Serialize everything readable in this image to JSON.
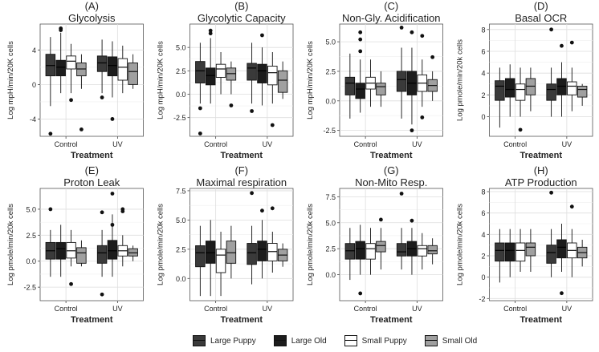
{
  "chart_data": [
    {
      "type": "boxplot",
      "title": "(A)\nGlycolysis",
      "xlabel": "Treatment",
      "ylabel": "Log mpH/min/20K cells",
      "categories": [
        "Control",
        "UV"
      ],
      "ylim": [
        -6,
        7
      ],
      "yticks": [
        -4,
        0,
        4
      ],
      "series": [
        {
          "name": "Large Puppy",
          "boxes": [
            {
              "whislo": -2.5,
              "q1": 1.0,
              "med": 2.2,
              "q3": 3.5,
              "whishi": 5.5,
              "fliers": [
                -5.7
              ]
            },
            {
              "whislo": -1.0,
              "q1": 1.5,
              "med": 2.5,
              "q3": 3.3,
              "whishi": 5.2,
              "fliers": [
                -1.5
              ]
            }
          ]
        },
        {
          "name": "Large Old",
          "boxes": [
            {
              "whislo": -1.0,
              "q1": 1.0,
              "med": 2.0,
              "q3": 2.8,
              "whishi": 6.0,
              "fliers": [
                6.5,
                6.3
              ]
            },
            {
              "whislo": -1.5,
              "q1": 1.0,
              "med": 2.2,
              "q3": 3.2,
              "whishi": 5.0,
              "fliers": [
                -4.0
              ]
            }
          ]
        },
        {
          "name": "Small Puppy",
          "boxes": [
            {
              "whislo": -1.0,
              "q1": 1.8,
              "med": 2.7,
              "q3": 3.3,
              "whishi": 4.7,
              "fliers": [
                -1.8
              ]
            },
            {
              "whislo": -1.0,
              "q1": 0.5,
              "med": 2.0,
              "q3": 3.0,
              "whishi": 4.5,
              "fliers": []
            }
          ]
        },
        {
          "name": "Small Old",
          "boxes": [
            {
              "whislo": -0.5,
              "q1": 1.0,
              "med": 1.8,
              "q3": 2.5,
              "whishi": 3.5,
              "fliers": [
                -5.2
              ]
            },
            {
              "whislo": -0.5,
              "q1": 0.0,
              "med": 1.5,
              "q3": 2.5,
              "whishi": 3.5,
              "fliers": []
            }
          ]
        }
      ]
    },
    {
      "type": "boxplot",
      "title": "(B)\nGlycolytic Capacity",
      "xlabel": "Treatment",
      "ylabel": "Log mpH/min/20K cells",
      "categories": [
        "Control",
        "UV"
      ],
      "ylim": [
        -4.5,
        7.5
      ],
      "yticks": [
        -2.5,
        0.0,
        2.5,
        5.0
      ],
      "series": [
        {
          "name": "Large Puppy",
          "boxes": [
            {
              "whislo": -1.0,
              "q1": 1.2,
              "med": 2.5,
              "q3": 3.5,
              "whishi": 5.5,
              "fliers": [
                -1.5,
                -4.2
              ]
            },
            {
              "whislo": -1.0,
              "q1": 1.5,
              "med": 2.8,
              "q3": 3.3,
              "whishi": 5.5,
              "fliers": [
                -1.8
              ]
            }
          ]
        },
        {
          "name": "Large Old",
          "boxes": [
            {
              "whislo": -1.0,
              "q1": 1.0,
              "med": 2.0,
              "q3": 2.8,
              "whishi": 6.0,
              "fliers": [
                6.8,
                6.5
              ]
            },
            {
              "whislo": -1.2,
              "q1": 1.2,
              "med": 2.5,
              "q3": 3.2,
              "whishi": 5.0,
              "fliers": [
                6.3
              ]
            }
          ]
        },
        {
          "name": "Small Puppy",
          "boxes": [
            {
              "whislo": 0.0,
              "q1": 1.8,
              "med": 2.7,
              "q3": 3.2,
              "whishi": 4.5,
              "fliers": []
            },
            {
              "whislo": -1.0,
              "q1": 1.0,
              "med": 2.3,
              "q3": 3.0,
              "whishi": 4.5,
              "fliers": [
                -3.3
              ]
            }
          ]
        },
        {
          "name": "Small Old",
          "boxes": [
            {
              "whislo": 0.0,
              "q1": 1.5,
              "med": 2.2,
              "q3": 2.8,
              "whishi": 3.5,
              "fliers": [
                -1.2
              ]
            },
            {
              "whislo": -0.5,
              "q1": 0.2,
              "med": 1.5,
              "q3": 2.5,
              "whishi": 3.5,
              "fliers": []
            }
          ]
        }
      ]
    },
    {
      "type": "boxplot",
      "title": "(C)\nNon-Gly. Acidification",
      "xlabel": "Treatment",
      "ylabel": "Log mpH/min/20K cells",
      "categories": [
        "Control",
        "UV"
      ],
      "ylim": [
        -3,
        6.5
      ],
      "yticks": [
        -2.5,
        0.0,
        2.5,
        5.0
      ],
      "series": [
        {
          "name": "Large Puppy",
          "boxes": [
            {
              "whislo": -1.5,
              "q1": 0.5,
              "med": 1.5,
              "q3": 2.0,
              "whishi": 4.0,
              "fliers": []
            },
            {
              "whislo": -1.5,
              "q1": 0.8,
              "med": 1.8,
              "q3": 2.5,
              "whishi": 4.5,
              "fliers": [
                6.2
              ]
            }
          ]
        },
        {
          "name": "Large Old",
          "boxes": [
            {
              "whislo": -1.0,
              "q1": 0.2,
              "med": 1.0,
              "q3": 1.5,
              "whishi": 3.5,
              "fliers": [
                5.8,
                5.2,
                4.2
              ]
            },
            {
              "whislo": -2.0,
              "q1": 0.5,
              "med": 1.5,
              "q3": 2.5,
              "whishi": 4.5,
              "fliers": [
                -2.5,
                5.8
              ]
            }
          ]
        },
        {
          "name": "Small Puppy",
          "boxes": [
            {
              "whislo": -0.5,
              "q1": 1.0,
              "med": 1.5,
              "q3": 2.0,
              "whishi": 3.5,
              "fliers": []
            },
            {
              "whislo": -0.5,
              "q1": 0.8,
              "med": 1.5,
              "q3": 2.2,
              "whishi": 3.5,
              "fliers": [
                5.5,
                -1.4
              ]
            }
          ]
        },
        {
          "name": "Small Old",
          "boxes": [
            {
              "whislo": -0.5,
              "q1": 0.5,
              "med": 1.2,
              "q3": 1.5,
              "whishi": 2.5,
              "fliers": []
            },
            {
              "whislo": 0.0,
              "q1": 0.8,
              "med": 1.3,
              "q3": 1.8,
              "whishi": 2.5,
              "fliers": [
                3.7
              ]
            }
          ]
        }
      ]
    },
    {
      "type": "boxplot",
      "title": "(D)\nBasal OCR",
      "xlabel": "Treatment",
      "ylabel": "Log pmole/min/20k cells",
      "categories": [
        "Control",
        "UV"
      ],
      "ylim": [
        -1.8,
        8.5
      ],
      "yticks": [
        0,
        2,
        4,
        6,
        8
      ],
      "series": [
        {
          "name": "Large Puppy",
          "boxes": [
            {
              "whislo": -1.0,
              "q1": 1.5,
              "med": 2.8,
              "q3": 3.3,
              "whishi": 4.5,
              "fliers": []
            },
            {
              "whislo": 0.0,
              "q1": 1.5,
              "med": 2.5,
              "q3": 3.0,
              "whishi": 4.5,
              "fliers": [
                8.0
              ]
            }
          ]
        },
        {
          "name": "Large Old",
          "boxes": [
            {
              "whislo": 0.0,
              "q1": 1.8,
              "med": 2.5,
              "q3": 3.5,
              "whishi": 4.8,
              "fliers": []
            },
            {
              "whislo": 0.0,
              "q1": 2.0,
              "med": 2.8,
              "q3": 3.5,
              "whishi": 5.0,
              "fliers": [
                6.5
              ]
            }
          ]
        },
        {
          "name": "Small Puppy",
          "boxes": [
            {
              "whislo": 0.0,
              "q1": 1.5,
              "med": 2.5,
              "q3": 3.0,
              "whishi": 4.5,
              "fliers": [
                -1.2
              ]
            },
            {
              "whislo": 0.5,
              "q1": 2.0,
              "med": 2.8,
              "q3": 3.2,
              "whishi": 4.5,
              "fliers": [
                6.8
              ]
            }
          ]
        },
        {
          "name": "Small Old",
          "boxes": [
            {
              "whislo": 0.5,
              "q1": 2.0,
              "med": 2.8,
              "q3": 3.5,
              "whishi": 4.5,
              "fliers": []
            },
            {
              "whislo": 1.0,
              "q1": 1.8,
              "med": 2.5,
              "q3": 2.8,
              "whishi": 3.0,
              "fliers": []
            }
          ]
        }
      ]
    },
    {
      "type": "boxplot",
      "title": "(E)\nProton Leak",
      "xlabel": "Treatment",
      "ylabel": "Log pmole/min/20k cells",
      "categories": [
        "Control",
        "UV"
      ],
      "ylim": [
        -3.8,
        7
      ],
      "yticks": [
        -2.5,
        0.0,
        2.5,
        5.0
      ],
      "series": [
        {
          "name": "Large Puppy",
          "boxes": [
            {
              "whislo": -1.5,
              "q1": 0.2,
              "med": 1.0,
              "q3": 1.8,
              "whishi": 3.0,
              "fliers": [
                5.0
              ]
            },
            {
              "whislo": -1.5,
              "q1": -0.2,
              "med": 0.8,
              "q3": 1.5,
              "whishi": 3.0,
              "fliers": [
                -3.2,
                4.7
              ]
            }
          ]
        },
        {
          "name": "Large Old",
          "boxes": [
            {
              "whislo": -1.5,
              "q1": 0.2,
              "med": 1.2,
              "q3": 1.8,
              "whishi": 3.5,
              "fliers": []
            },
            {
              "whislo": -1.5,
              "q1": 0.2,
              "med": 1.0,
              "q3": 2.0,
              "whishi": 4.5,
              "fliers": [
                6.5,
                3.5
              ]
            }
          ]
        },
        {
          "name": "Small Puppy",
          "boxes": [
            {
              "whislo": -0.5,
              "q1": 0.3,
              "med": 1.0,
              "q3": 1.8,
              "whishi": 3.0,
              "fliers": [
                -2.2
              ]
            },
            {
              "whislo": -0.5,
              "q1": 0.5,
              "med": 1.0,
              "q3": 1.5,
              "whishi": 2.5,
              "fliers": [
                5.0,
                4.8
              ]
            }
          ]
        },
        {
          "name": "Small Old",
          "boxes": [
            {
              "whislo": -0.5,
              "q1": -0.2,
              "med": 0.8,
              "q3": 1.3,
              "whishi": 2.0,
              "fliers": []
            },
            {
              "whislo": 0.0,
              "q1": 0.5,
              "med": 0.8,
              "q3": 1.2,
              "whishi": 1.5,
              "fliers": []
            }
          ]
        }
      ]
    },
    {
      "type": "boxplot",
      "title": "(F)\nMaximal respiration",
      "xlabel": "Treatment",
      "ylabel": "Log pmole/min/20k cells",
      "categories": [
        "Control",
        "UV"
      ],
      "ylim": [
        -1.9,
        7.7
      ],
      "yticks": [
        0.0,
        2.5,
        5.0,
        7.5
      ],
      "series": [
        {
          "name": "Large Puppy",
          "boxes": [
            {
              "whislo": -1.5,
              "q1": 1.0,
              "med": 2.2,
              "q3": 2.8,
              "whishi": 4.5,
              "fliers": []
            },
            {
              "whislo": -0.5,
              "q1": 1.2,
              "med": 2.2,
              "q3": 3.0,
              "whishi": 4.5,
              "fliers": [
                7.3
              ]
            }
          ]
        },
        {
          "name": "Large Old",
          "boxes": [
            {
              "whislo": -1.5,
              "q1": 1.3,
              "med": 2.2,
              "q3": 3.2,
              "whishi": 5.0,
              "fliers": []
            },
            {
              "whislo": 0.0,
              "q1": 1.5,
              "med": 2.5,
              "q3": 3.2,
              "whishi": 5.0,
              "fliers": [
                5.8
              ]
            }
          ]
        },
        {
          "name": "Small Puppy",
          "boxes": [
            {
              "whislo": -1.5,
              "q1": 0.5,
              "med": 2.0,
              "q3": 2.5,
              "whishi": 4.0,
              "fliers": []
            },
            {
              "whislo": 0.5,
              "q1": 1.5,
              "med": 2.3,
              "q3": 3.0,
              "whishi": 4.0,
              "fliers": [
                6.0
              ]
            }
          ]
        },
        {
          "name": "Small Old",
          "boxes": [
            {
              "whislo": 0.0,
              "q1": 1.3,
              "med": 2.2,
              "q3": 3.2,
              "whishi": 4.5,
              "fliers": []
            },
            {
              "whislo": 1.0,
              "q1": 1.5,
              "med": 2.0,
              "q3": 2.5,
              "whishi": 3.0,
              "fliers": []
            }
          ]
        }
      ]
    },
    {
      "type": "boxplot",
      "title": "(G)\nNon-Mito Resp.",
      "xlabel": "Treatment",
      "ylabel": "Log pmole/min/20k cells",
      "categories": [
        "Control",
        "UV"
      ],
      "ylim": [
        -2.5,
        8.3
      ],
      "yticks": [
        0.0,
        2.5,
        5.0,
        7.5
      ],
      "series": [
        {
          "name": "Large Puppy",
          "boxes": [
            {
              "whislo": -0.5,
              "q1": 1.5,
              "med": 2.3,
              "q3": 3.0,
              "whishi": 4.5,
              "fliers": []
            },
            {
              "whislo": 0.5,
              "q1": 1.8,
              "med": 2.2,
              "q3": 3.0,
              "whishi": 4.5,
              "fliers": [
                7.8
              ]
            }
          ]
        },
        {
          "name": "Large Old",
          "boxes": [
            {
              "whislo": 0.0,
              "q1": 1.5,
              "med": 2.5,
              "q3": 3.2,
              "whishi": 4.8,
              "fliers": [
                -1.8
              ]
            },
            {
              "whislo": 0.0,
              "q1": 1.8,
              "med": 2.5,
              "q3": 3.2,
              "whishi": 4.5,
              "fliers": [
                5.2
              ]
            }
          ]
        },
        {
          "name": "Small Puppy",
          "boxes": [
            {
              "whislo": 0.0,
              "q1": 1.5,
              "med": 2.5,
              "q3": 3.0,
              "whishi": 4.5,
              "fliers": []
            },
            {
              "whislo": 0.5,
              "q1": 1.8,
              "med": 2.5,
              "q3": 2.8,
              "whishi": 4.0,
              "fliers": []
            }
          ]
        },
        {
          "name": "Small Old",
          "boxes": [
            {
              "whislo": 0.5,
              "q1": 2.2,
              "med": 2.8,
              "q3": 3.2,
              "whishi": 4.5,
              "fliers": [
                5.3
              ]
            },
            {
              "whislo": 1.0,
              "q1": 2.0,
              "med": 2.3,
              "q3": 2.8,
              "whishi": 3.5,
              "fliers": []
            }
          ]
        }
      ]
    },
    {
      "type": "boxplot",
      "title": "(H)\nATP Production",
      "xlabel": "Treatment",
      "ylabel": "Log pmole/min/20k cells",
      "categories": [
        "Control",
        "UV"
      ],
      "ylim": [
        -2.2,
        8.3
      ],
      "yticks": [
        -2,
        0,
        2,
        4,
        6,
        8
      ],
      "series": [
        {
          "name": "Large Puppy",
          "boxes": [
            {
              "whislo": -0.5,
              "q1": 1.5,
              "med": 2.5,
              "q3": 3.2,
              "whishi": 4.5,
              "fliers": []
            },
            {
              "whislo": 0.0,
              "q1": 1.3,
              "med": 2.3,
              "q3": 3.0,
              "whishi": 4.5,
              "fliers": [
                7.9
              ]
            }
          ]
        },
        {
          "name": "Large Old",
          "boxes": [
            {
              "whislo": 0.0,
              "q1": 1.5,
              "med": 2.5,
              "q3": 3.2,
              "whishi": 4.5,
              "fliers": []
            },
            {
              "whislo": 0.5,
              "q1": 1.8,
              "med": 2.8,
              "q3": 3.5,
              "whishi": 5.0,
              "fliers": [
                -1.5
              ]
            }
          ]
        },
        {
          "name": "Small Puppy",
          "boxes": [
            {
              "whislo": 0.5,
              "q1": 1.5,
              "med": 2.5,
              "q3": 3.2,
              "whishi": 4.5,
              "fliers": []
            },
            {
              "whislo": 0.0,
              "q1": 1.8,
              "med": 2.5,
              "q3": 3.2,
              "whishi": 4.5,
              "fliers": [
                6.6
              ]
            }
          ]
        },
        {
          "name": "Small Old",
          "boxes": [
            {
              "whislo": 0.5,
              "q1": 2.0,
              "med": 2.8,
              "q3": 3.2,
              "whishi": 4.5,
              "fliers": []
            },
            {
              "whislo": 1.0,
              "q1": 1.8,
              "med": 2.3,
              "q3": 2.8,
              "whishi": 3.5,
              "fliers": []
            }
          ]
        }
      ]
    }
  ],
  "legend": [
    {
      "label": "Large Puppy",
      "color": "#3a3a3a"
    },
    {
      "label": "Large Old",
      "color": "#1c1c1c"
    },
    {
      "label": "Small Puppy",
      "color": "#ffffff"
    },
    {
      "label": "Small Old",
      "color": "#a0a0a0"
    }
  ]
}
